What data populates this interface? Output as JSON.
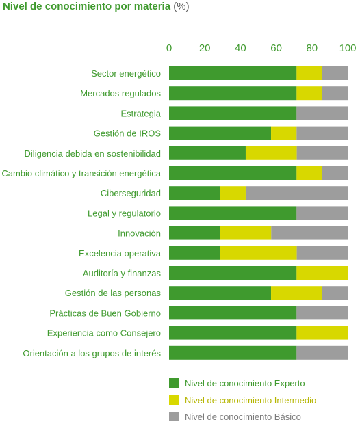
{
  "colors": {
    "experto": "#3f9a2e",
    "intermedio": "#d8d800",
    "basico": "#9d9d9d",
    "text_green": "#3f9a2e",
    "axis_text": "#3f9a2e"
  },
  "chart_data": {
    "type": "bar",
    "orientation": "horizontal",
    "stacked": true,
    "title": "Nivel de conocimiento por materia",
    "title_unit": "(%)",
    "xlim": [
      0,
      100
    ],
    "xticks": [
      0,
      20,
      40,
      60,
      80,
      100
    ],
    "grid": false,
    "legend_position": "bottom",
    "categories": [
      "Sector energético",
      "Mercados regulados",
      "Estrategia",
      "Gestión de IROS",
      "Diligencia debida en sostenibilidad",
      "Cambio climático y transición energética",
      "Ciberseguridad",
      "Legal y regulatorio",
      "Innovación",
      "Excelencia operativa",
      "Auditoría y finanzas",
      "Gestión de las personas",
      "Prácticas de Buen Gobierno",
      "Experiencia como Consejero",
      "Orientación a los grupos de interés"
    ],
    "series": [
      {
        "name": "Nivel de conocimiento Experto",
        "values": [
          71.4,
          71.4,
          71.4,
          57.1,
          42.9,
          71.4,
          28.6,
          71.4,
          28.6,
          28.6,
          71.4,
          57.1,
          71.4,
          71.4,
          71.4
        ]
      },
      {
        "name": "Nivel de conocimiento Intermedio",
        "values": [
          14.3,
          14.3,
          0,
          14.3,
          28.6,
          14.3,
          14.3,
          0,
          28.6,
          42.9,
          28.6,
          28.6,
          0,
          28.6,
          0
        ]
      },
      {
        "name": "Nivel de conocimiento Básico",
        "values": [
          14.3,
          14.3,
          28.6,
          28.6,
          28.6,
          14.3,
          57.1,
          28.6,
          42.9,
          28.6,
          0,
          14.3,
          28.6,
          0,
          28.6
        ]
      }
    ]
  }
}
